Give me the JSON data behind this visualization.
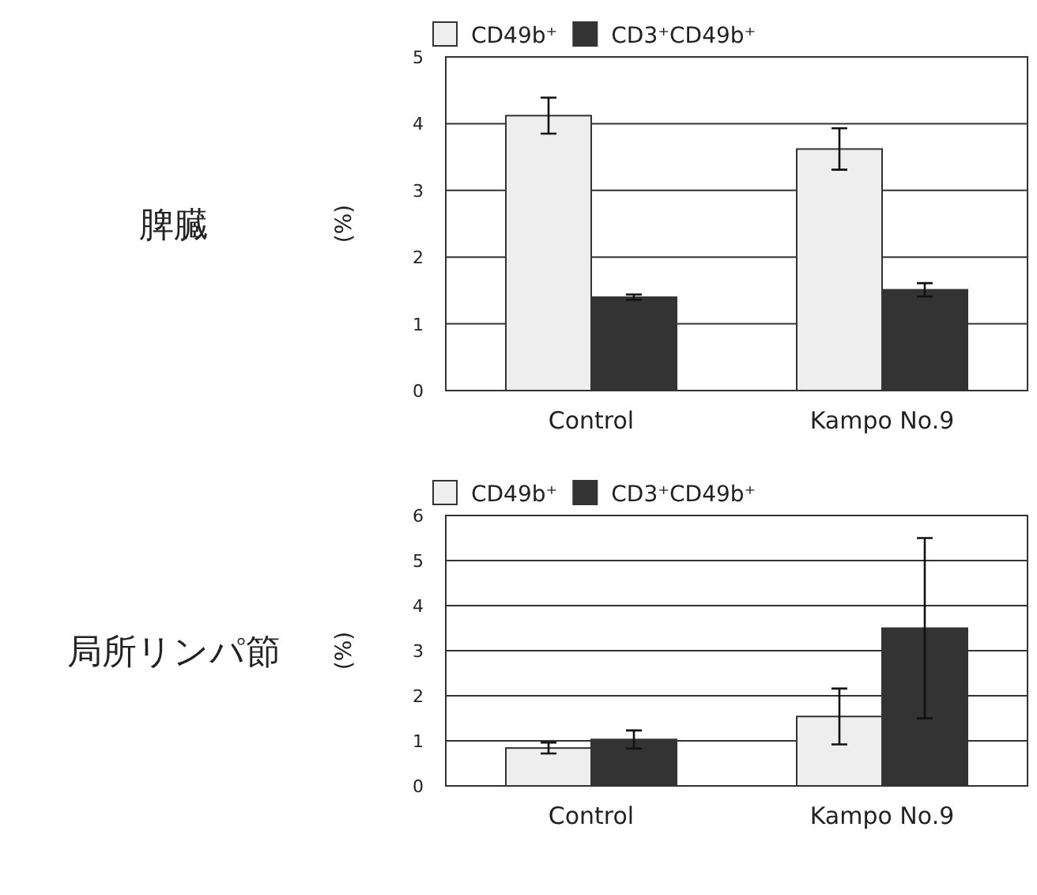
{
  "chart_data": [
    {
      "type": "bar",
      "title": "脾臓",
      "ylabel": "(%)",
      "categories": [
        "Control",
        "Kampo No.9"
      ],
      "ylim": [
        0,
        5
      ],
      "yticks": [
        0,
        1,
        2,
        3,
        4,
        5
      ],
      "grid": "y",
      "legend": "top left",
      "series": [
        {
          "name": "CD49b⁺",
          "color": "#eeeeee",
          "values": [
            4.12,
            3.62
          ],
          "errors": [
            0.27,
            0.31
          ]
        },
        {
          "name": "CD3⁺CD49b⁺",
          "color": "#333333",
          "values": [
            1.4,
            1.51
          ],
          "errors": [
            0.04,
            0.1
          ]
        }
      ]
    },
    {
      "type": "bar",
      "title": "局所リンパ節",
      "ylabel": "(%)",
      "categories": [
        "Control",
        "Kampo No.9"
      ],
      "ylim": [
        0,
        6
      ],
      "yticks": [
        0,
        1,
        2,
        3,
        4,
        5,
        6
      ],
      "grid": "y",
      "legend": "top left",
      "series": [
        {
          "name": "CD49b⁺",
          "color": "#eeeeee",
          "values": [
            0.84,
            1.54
          ],
          "errors": [
            0.12,
            0.62
          ]
        },
        {
          "name": "CD3⁺CD49b⁺",
          "color": "#333333",
          "values": [
            1.03,
            3.5
          ],
          "errors": [
            0.2,
            2.0
          ]
        }
      ]
    }
  ]
}
